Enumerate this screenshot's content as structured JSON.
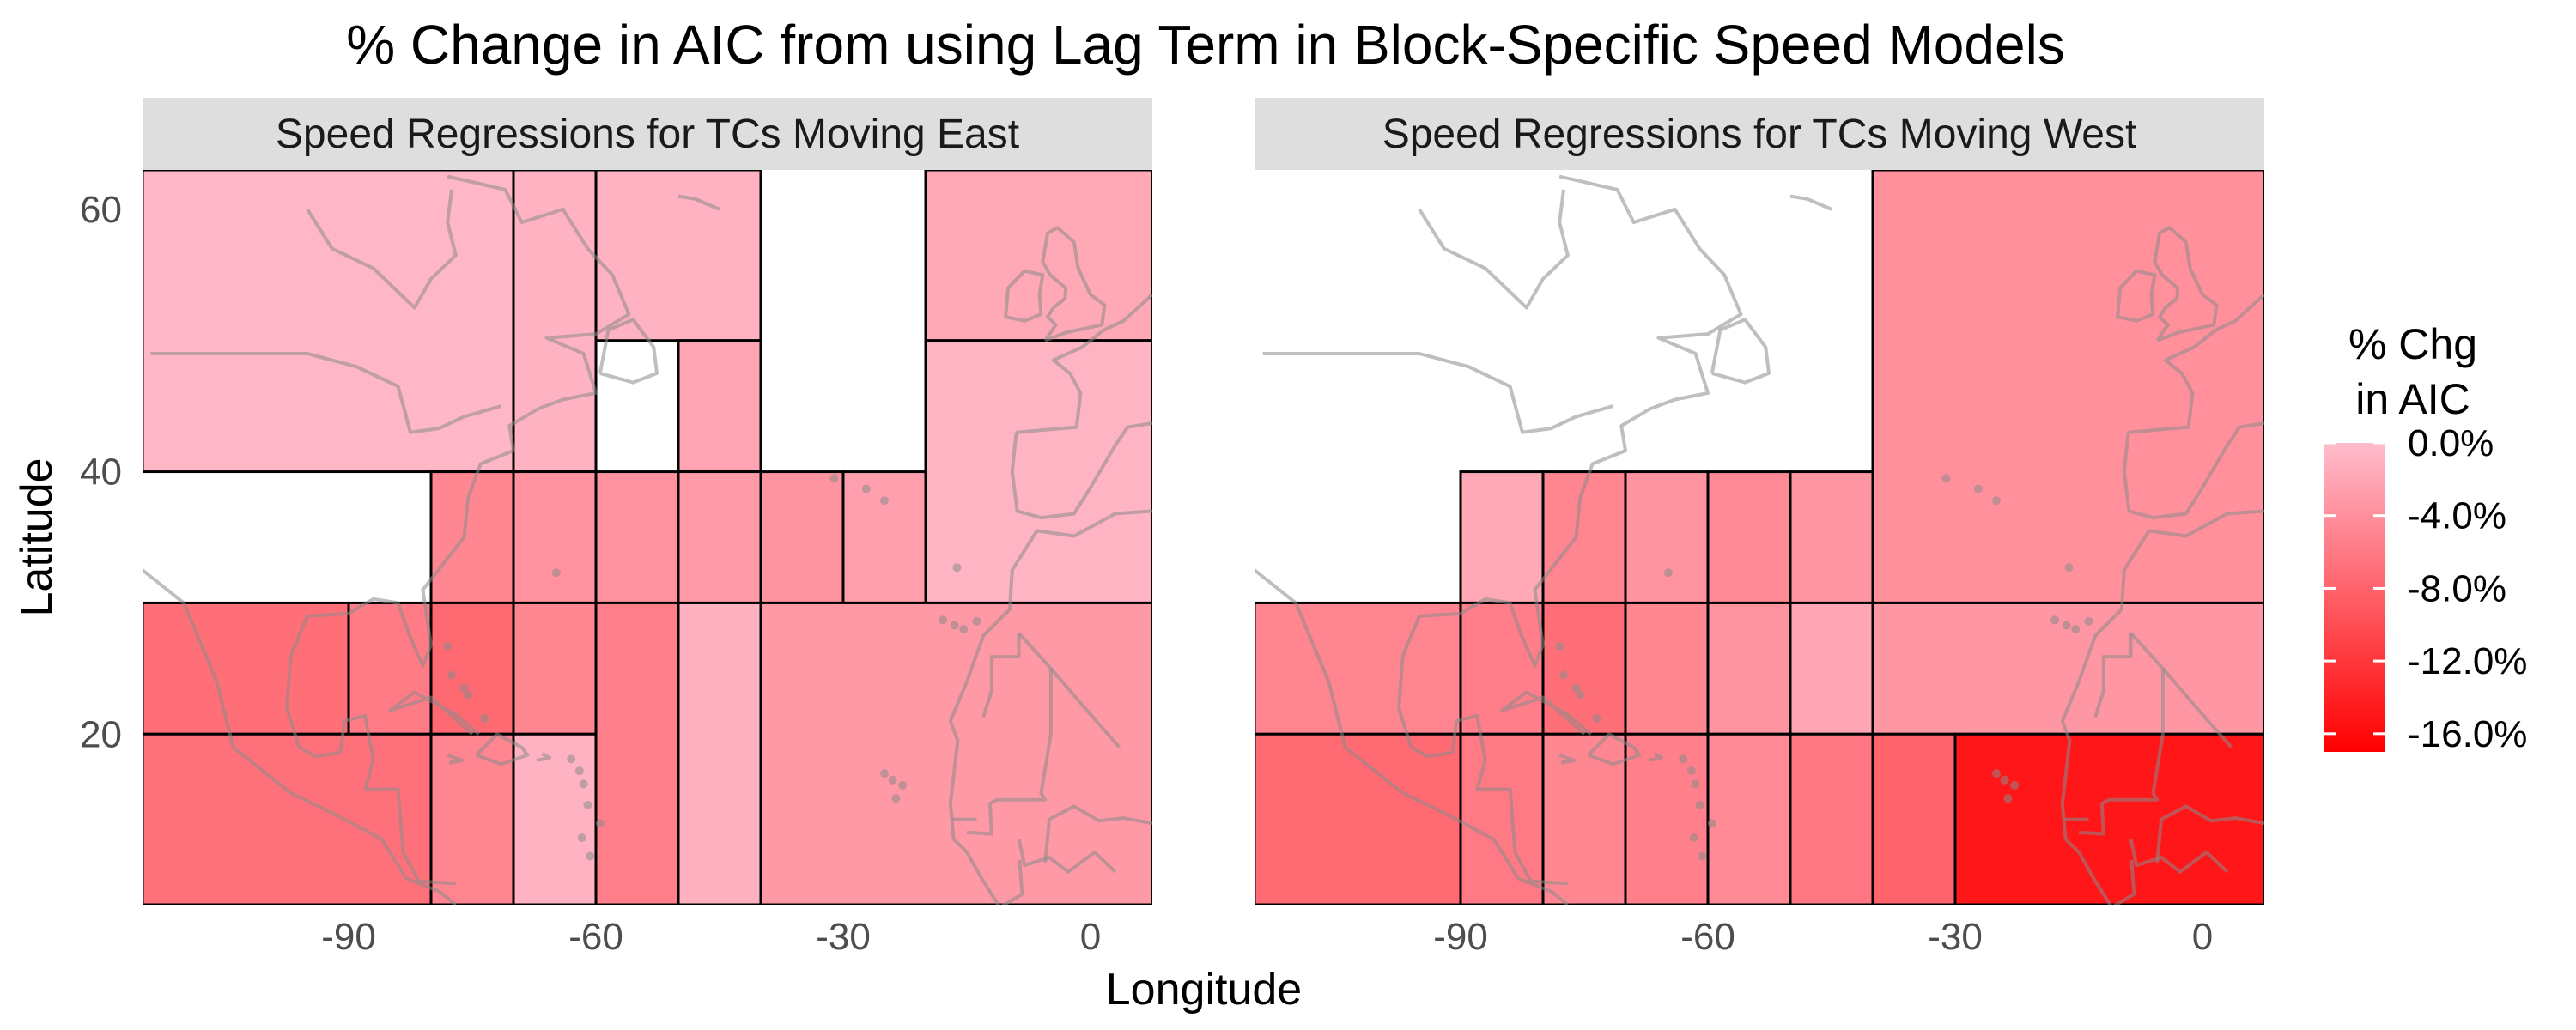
{
  "chart_data": {
    "type": "heatmap",
    "title": "% Change in AIC from using Lag Term in Block-Specific Speed Models",
    "xlabel": "Longitude",
    "ylabel": "Latitude",
    "xlim": [
      -115,
      7.5
    ],
    "ylim": [
      7,
      63
    ],
    "x_ticks": [
      -90,
      -60,
      -30,
      0
    ],
    "x_tick_labels": [
      "-90",
      "-60",
      "-30",
      "0"
    ],
    "y_ticks": [
      20,
      40,
      60
    ],
    "y_tick_labels": [
      "20",
      "40",
      "60"
    ],
    "grid": false,
    "legend": {
      "title_line1": "% Chg",
      "title_line2": "in AIC",
      "placement": "right",
      "min": -17,
      "max": 0,
      "colors": [
        "#ff0000",
        "#ffbccc"
      ],
      "breaks": [
        0,
        -4,
        -8,
        -12,
        -16
      ],
      "labels": [
        "0.0%",
        "-4.0%",
        "-8.0%",
        "-12.0%",
        "-16.0%"
      ]
    },
    "panels": [
      {
        "strip": "Speed Regressions for TCs Moving East",
        "blocks": [
          {
            "lon": [
              -115,
              -70
            ],
            "lat": [
              40,
              63
            ],
            "value": -0.5
          },
          {
            "lon": [
              -70,
              -60
            ],
            "lat": [
              40,
              63
            ],
            "value": -0.8
          },
          {
            "lon": [
              -60,
              -40
            ],
            "lat": [
              50,
              63
            ],
            "value": -0.9
          },
          {
            "lon": [
              -20,
              7.5
            ],
            "lat": [
              50,
              63
            ],
            "value": -1.8
          },
          {
            "lon": [
              -50,
              -40
            ],
            "lat": [
              40,
              50
            ],
            "value": -2.2
          },
          {
            "lon": [
              -20,
              7.5
            ],
            "lat": [
              30,
              50
            ],
            "value": -0.7
          },
          {
            "lon": [
              -80,
              -70
            ],
            "lat": [
              30,
              40
            ],
            "value": -4.8
          },
          {
            "lon": [
              -70,
              -60
            ],
            "lat": [
              30,
              40
            ],
            "value": -3.8
          },
          {
            "lon": [
              -60,
              -50
            ],
            "lat": [
              30,
              40
            ],
            "value": -3.8
          },
          {
            "lon": [
              -50,
              -40
            ],
            "lat": [
              30,
              40
            ],
            "value": -3.0
          },
          {
            "lon": [
              -40,
              -30
            ],
            "lat": [
              30,
              40
            ],
            "value": -3.6
          },
          {
            "lon": [
              -30,
              -20
            ],
            "lat": [
              30,
              40
            ],
            "value": -2.6
          },
          {
            "lon": [
              -115,
              -90
            ],
            "lat": [
              20,
              30
            ],
            "value": -7.0
          },
          {
            "lon": [
              -90,
              -80
            ],
            "lat": [
              20,
              30
            ],
            "value": -5.8
          },
          {
            "lon": [
              -80,
              -70
            ],
            "lat": [
              20,
              30
            ],
            "value": -7.5
          },
          {
            "lon": [
              -70,
              -60
            ],
            "lat": [
              20,
              30
            ],
            "value": -4.8
          },
          {
            "lon": [
              -60,
              -50
            ],
            "lat": [
              7,
              30
            ],
            "value": -5.4
          },
          {
            "lon": [
              -50,
              -40
            ],
            "lat": [
              7,
              30
            ],
            "value": -1.0
          },
          {
            "lon": [
              -40,
              7.5
            ],
            "lat": [
              7,
              30
            ],
            "value": -3.2
          },
          {
            "lon": [
              -115,
              -80
            ],
            "lat": [
              7,
              20
            ],
            "value": -6.8
          },
          {
            "lon": [
              -80,
              -70
            ],
            "lat": [
              7,
              20
            ],
            "value": -5.0
          },
          {
            "lon": [
              -70,
              -60
            ],
            "lat": [
              7,
              20
            ],
            "value": -0.8
          }
        ]
      },
      {
        "strip": "Speed Regressions for TCs Moving West",
        "blocks": [
          {
            "lon": [
              -40,
              7.5
            ],
            "lat": [
              30,
              63
            ],
            "value": -4.0
          },
          {
            "lon": [
              -90,
              -80
            ],
            "lat": [
              30,
              40
            ],
            "value": -1.8
          },
          {
            "lon": [
              -80,
              -70
            ],
            "lat": [
              30,
              40
            ],
            "value": -5.0
          },
          {
            "lon": [
              -70,
              -60
            ],
            "lat": [
              30,
              40
            ],
            "value": -3.6
          },
          {
            "lon": [
              -60,
              -50
            ],
            "lat": [
              30,
              40
            ],
            "value": -4.6
          },
          {
            "lon": [
              -50,
              -40
            ],
            "lat": [
              30,
              40
            ],
            "value": -3.4
          },
          {
            "lon": [
              -115,
              -90
            ],
            "lat": [
              20,
              30
            ],
            "value": -5.0
          },
          {
            "lon": [
              -90,
              -80
            ],
            "lat": [
              20,
              30
            ],
            "value": -5.6
          },
          {
            "lon": [
              -80,
              -70
            ],
            "lat": [
              20,
              30
            ],
            "value": -7.0
          },
          {
            "lon": [
              -70,
              -60
            ],
            "lat": [
              20,
              30
            ],
            "value": -4.8
          },
          {
            "lon": [
              -60,
              -50
            ],
            "lat": [
              20,
              30
            ],
            "value": -3.6
          },
          {
            "lon": [
              -50,
              -40
            ],
            "lat": [
              20,
              30
            ],
            "value": -2.0
          },
          {
            "lon": [
              -40,
              7.5
            ],
            "lat": [
              20,
              30
            ],
            "value": -3.4
          },
          {
            "lon": [
              -115,
              -90
            ],
            "lat": [
              7,
              20
            ],
            "value": -7.4
          },
          {
            "lon": [
              -90,
              -80
            ],
            "lat": [
              7,
              20
            ],
            "value": -6.0
          },
          {
            "lon": [
              -80,
              -70
            ],
            "lat": [
              7,
              20
            ],
            "value": -4.8
          },
          {
            "lon": [
              -70,
              -60
            ],
            "lat": [
              7,
              20
            ],
            "value": -5.4
          },
          {
            "lon": [
              -60,
              -50
            ],
            "lat": [
              7,
              20
            ],
            "value": -4.6
          },
          {
            "lon": [
              -50,
              -40
            ],
            "lat": [
              7,
              20
            ],
            "value": -6.2
          },
          {
            "lon": [
              -40,
              -30
            ],
            "lat": [
              7,
              20
            ],
            "value": -8.0
          },
          {
            "lon": [
              -30,
              7.5
            ],
            "lat": [
              7,
              20
            ],
            "value": -15.0
          }
        ]
      }
    ]
  }
}
